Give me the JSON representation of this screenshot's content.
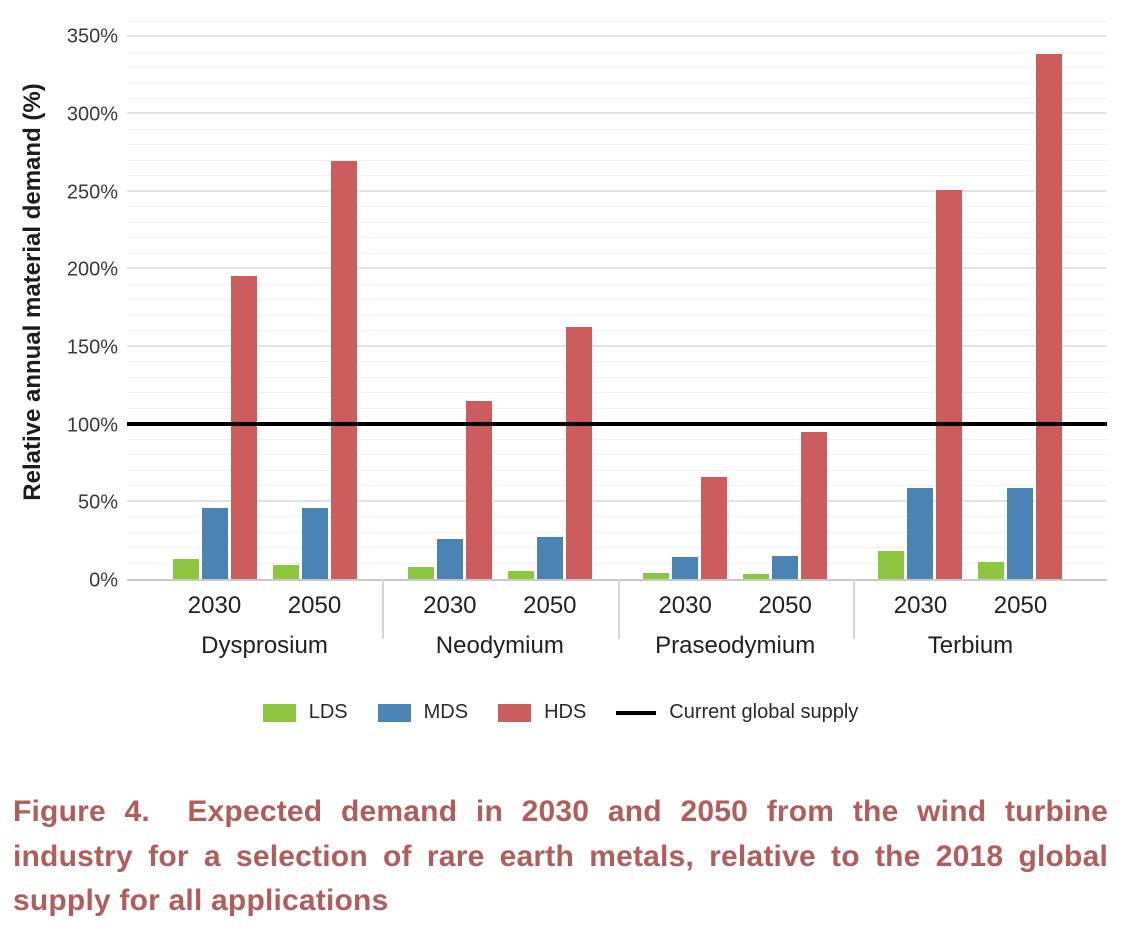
{
  "figure": {
    "caption": "Figure 4.  Expected demand in 2030 and 2050 from the wind turbine industry for a selection of rare earth metals, relative to the 2018 global supply for all applications",
    "caption_color": "#b25c5c"
  },
  "chart_data": {
    "type": "bar",
    "title": "",
    "xlabel": "",
    "ylabel": "Relative annual material demand (%)",
    "ylim": [
      0,
      361
    ],
    "grid": {
      "on": true,
      "minor_step": 10,
      "major_step": 50,
      "max": 360
    },
    "y_ticks": [
      {
        "value": 0,
        "label": "0%"
      },
      {
        "value": 50,
        "label": "50%"
      },
      {
        "value": 100,
        "label": "100%"
      },
      {
        "value": 150,
        "label": "150%"
      },
      {
        "value": 200,
        "label": "200%"
      },
      {
        "value": 250,
        "label": "250%"
      },
      {
        "value": 300,
        "label": "300%"
      },
      {
        "value": 350,
        "label": "350%"
      }
    ],
    "categories": [
      "Dysprosium",
      "Neodymium",
      "Praseodymium",
      "Terbium"
    ],
    "sub_categories": [
      "2030",
      "2050"
    ],
    "series": [
      {
        "name": "LDS",
        "color": "#8dc63f",
        "values": [
          [
            13,
            9
          ],
          [
            8,
            5
          ],
          [
            4,
            3
          ],
          [
            18,
            11
          ]
        ]
      },
      {
        "name": "MDS",
        "color": "#4a84b4",
        "values": [
          [
            46,
            46
          ],
          [
            26,
            27
          ],
          [
            14,
            15
          ],
          [
            59,
            59
          ]
        ]
      },
      {
        "name": "HDS",
        "color": "#cd5c5c",
        "values": [
          [
            196,
            270
          ],
          [
            115,
            163
          ],
          [
            66,
            95
          ],
          [
            251,
            339
          ]
        ]
      }
    ],
    "reference_line": {
      "value": 100,
      "label": "Current global supply",
      "color": "#000000"
    },
    "legend_position": "bottom",
    "axis_colors": {
      "tick_label": "#3a3a3a",
      "baseline": "#c9c9c9"
    }
  }
}
